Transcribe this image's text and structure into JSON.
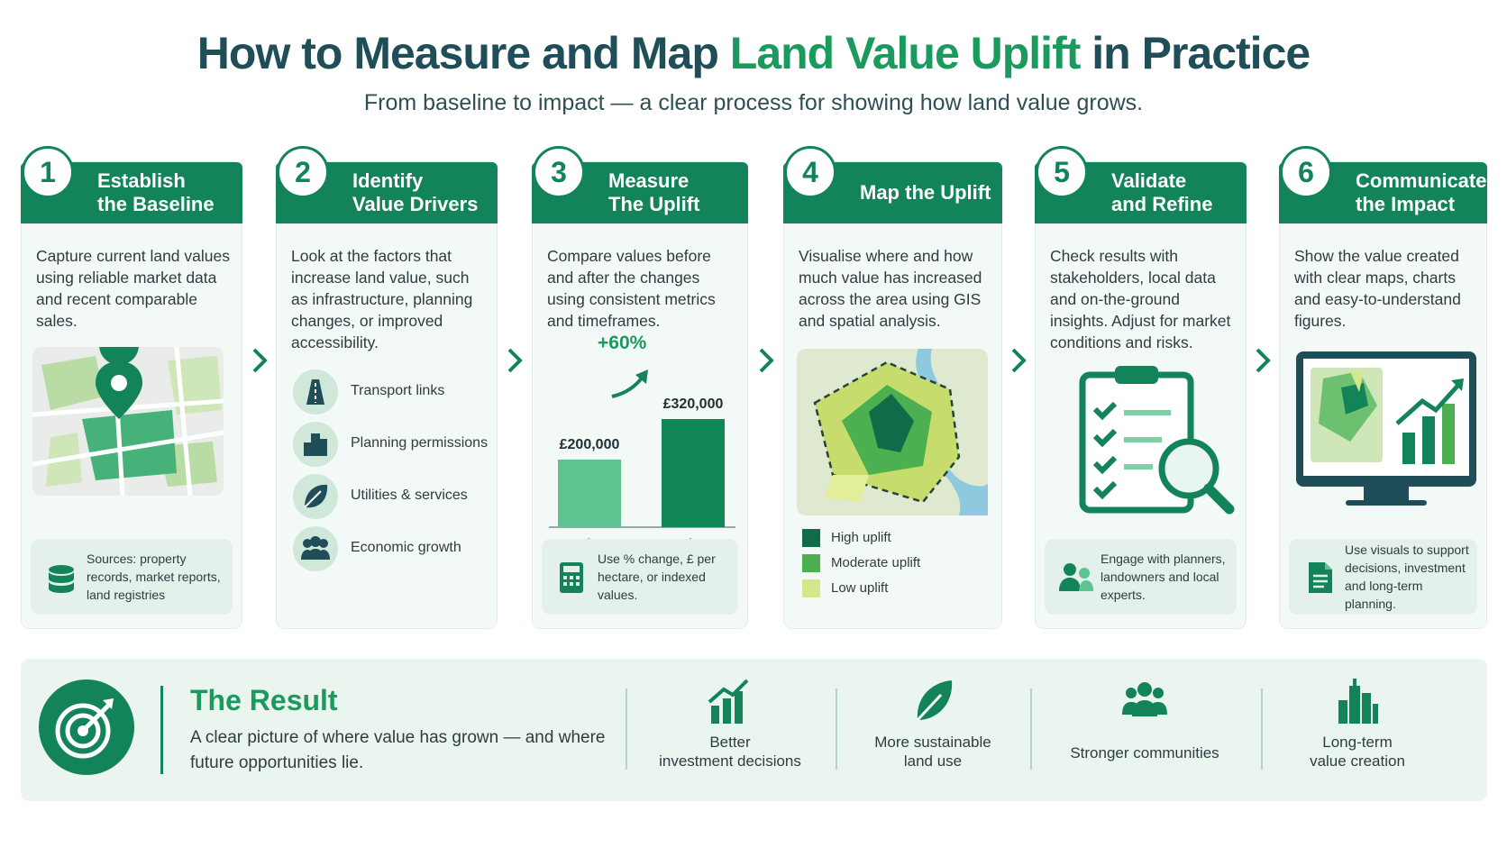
{
  "header": {
    "title_parts": [
      "How to Measure and Map",
      "Land Value Uplift",
      "in Practice"
    ],
    "subtitle": "From baseline to impact — a clear process for showing how land value grows."
  },
  "steps": [
    {
      "number": 1,
      "title_lines": [
        "Establish",
        "the Baseline"
      ],
      "text": "Capture current land values using reliable market data and recent comparable sales.",
      "note": "Sources: property records, market reports, land registries"
    },
    {
      "number": 2,
      "title_lines": [
        "Identify",
        "Value Drivers"
      ],
      "text": "Look at the factors that increase land value, such as infrastructure, planning changes, or improved accessibility.",
      "drivers": [
        "Transport links",
        "Planning permissions",
        "Utilities & services",
        "Economic growth"
      ]
    },
    {
      "number": 3,
      "title_lines": [
        "Measure",
        "The Uplift"
      ],
      "text": "Compare values before and after the changes using consistent metrics and timeframes.",
      "chart": {
        "type": "bar",
        "categories": [
          "Before",
          "After"
        ],
        "values": [
          200000,
          320000
        ],
        "value_labels": [
          "£200,000",
          "£320,000"
        ],
        "change_label": "+60%",
        "colors": [
          "#5cc391",
          "#128756"
        ]
      },
      "note": "Use % change, £ per hectare, or indexed values."
    },
    {
      "number": 4,
      "title_lines": [
        "Map the Uplift"
      ],
      "text": "Visualise where and how much value has increased across the area using GIS and spatial analysis.",
      "legend": [
        {
          "label": "High uplift",
          "color": "#0f6b48"
        },
        {
          "label": "Moderate uplift",
          "color": "#4caf50"
        },
        {
          "label": "Low uplift",
          "color": "#d4e88a"
        }
      ]
    },
    {
      "number": 5,
      "title_lines": [
        "Validate",
        "and Refine"
      ],
      "text": "Check results with stakeholders, local data and on-the-ground insights. Adjust for market conditions and risks.",
      "note": "Engage with planners, landowners and local experts."
    },
    {
      "number": 6,
      "title_lines": [
        "Communicate",
        "the Impact"
      ],
      "text": "Show the value created with clear maps, charts and easy-to-understand figures.",
      "note": "Use visuals to support decisions, investment and long-term planning."
    }
  ],
  "result": {
    "title": "The Result",
    "text": "A clear picture of where value has grown — and where future opportunities lie.",
    "benefits": [
      [
        "Better",
        "investment decisions"
      ],
      [
        "More sustainable",
        "land use"
      ],
      [
        "Stronger communities"
      ],
      [
        "Long-term",
        "value creation"
      ]
    ]
  }
}
